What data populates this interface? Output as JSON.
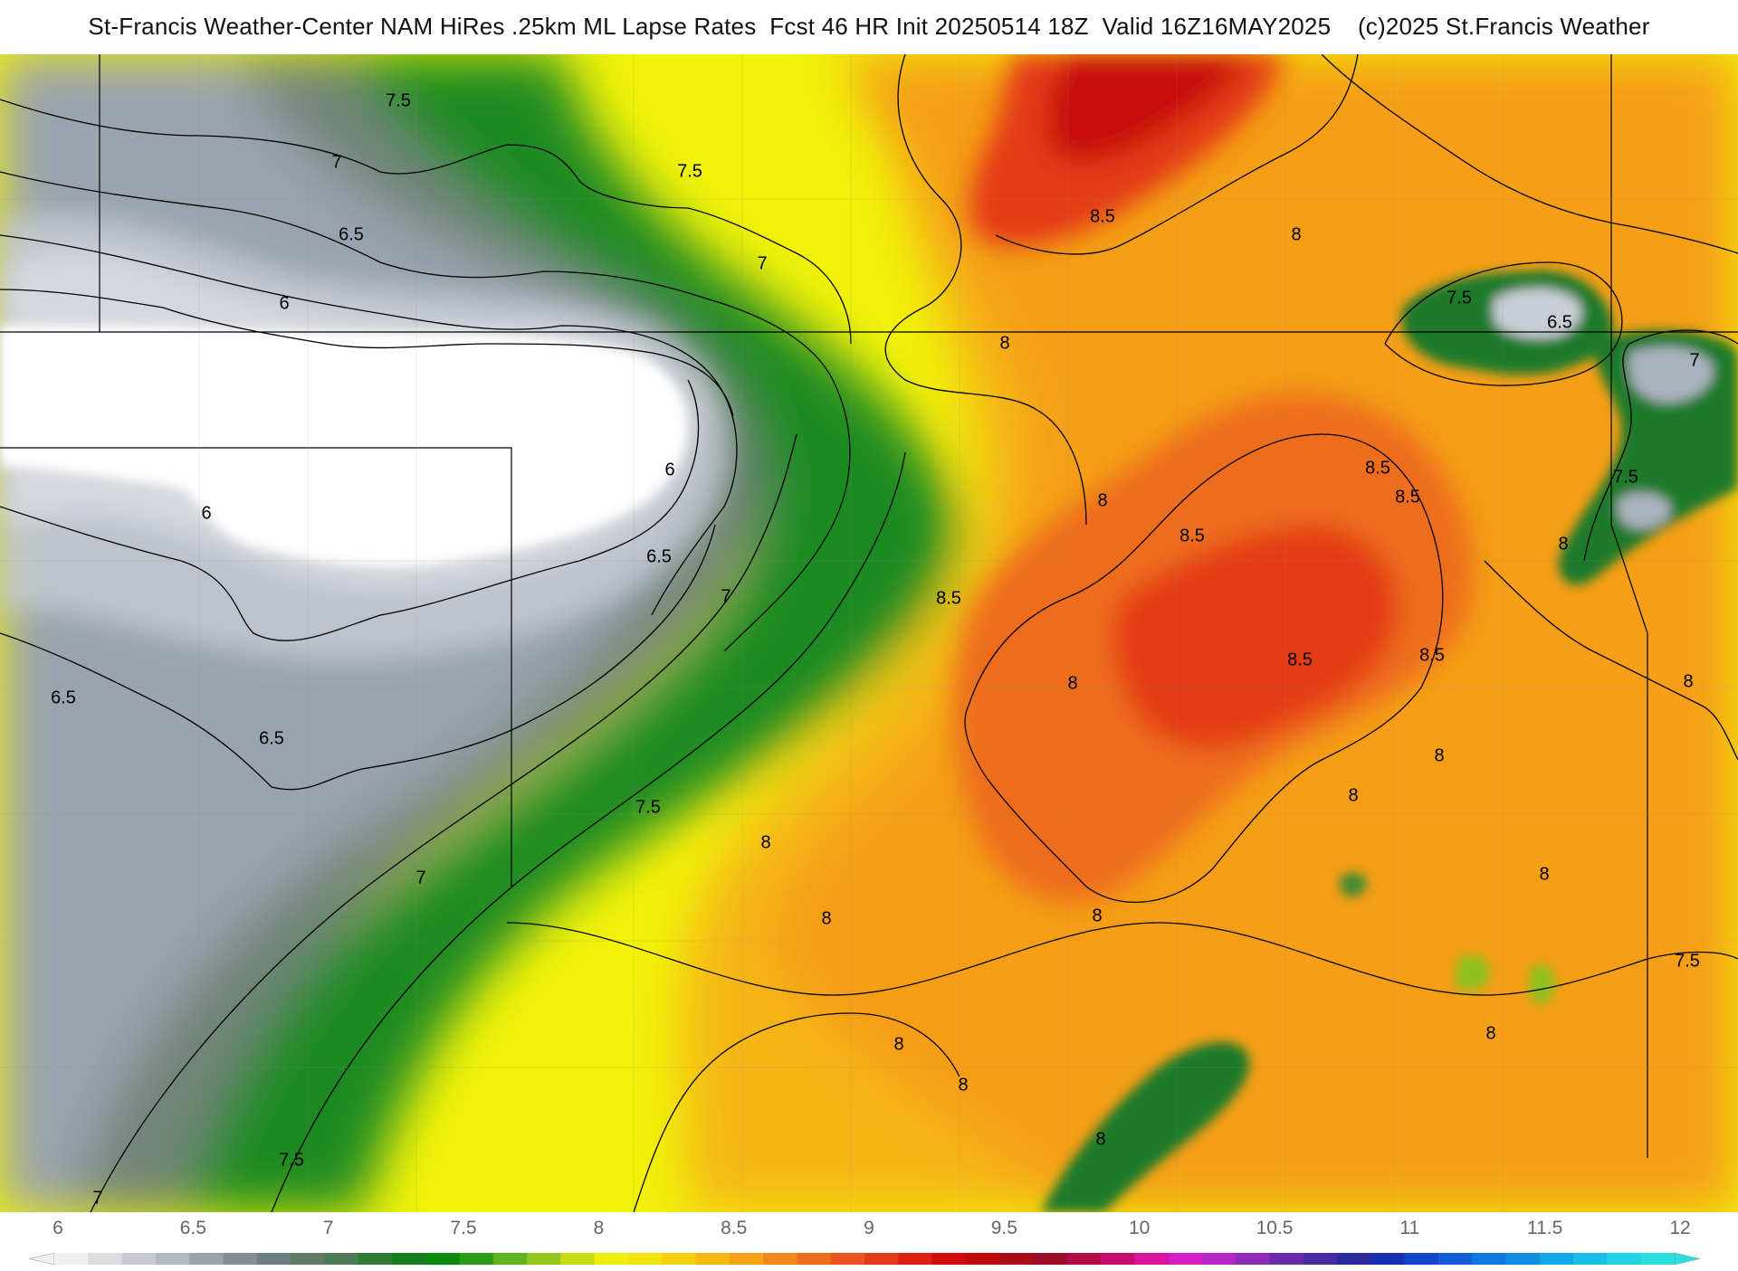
{
  "title": "St-Francis Weather-Center NAM HiRes .25km ML Lapse Rates  Fcst 46 HR Init 20250514 18Z  Valid 16Z16MAY2025    (c)2025 St.Francis Weather",
  "map": {
    "contour_labels": [
      "7.5",
      "7",
      "6.5",
      "6",
      "7.5",
      "7",
      "6",
      "6.5",
      "6",
      "6.5",
      "6.5",
      "7",
      "7.5",
      "7",
      "7.5",
      "7",
      "8",
      "8.5",
      "8",
      "8",
      "8",
      "8.5",
      "8.5",
      "8.5",
      "8.5",
      "8.5",
      "8.5",
      "8",
      "8",
      "8",
      "8",
      "8",
      "8",
      "8",
      "8",
      "8",
      "8",
      "8",
      "7.5",
      "7.5",
      "6.5",
      "7",
      "7.5",
      "8"
    ],
    "palette": [
      "#e6e8ec",
      "#c9ced6",
      "#aab2be",
      "#8e98a6",
      "#6f7d80",
      "#4f7a5c",
      "#1f7a2a",
      "#0c8a12",
      "#4aa51c",
      "#8cc11e",
      "#c8df12",
      "#f2f20a",
      "#f5dc0c",
      "#f7c010",
      "#f59e16",
      "#f07a1a",
      "#e85019",
      "#e02a14",
      "#c80a0a"
    ]
  },
  "legend": {
    "tick_labels": [
      "6",
      "6.5",
      "7",
      "7.5",
      "8",
      "8.5",
      "9",
      "9.5",
      "10",
      "10.5",
      "11",
      "11.5",
      "12"
    ],
    "colors": [
      "#f0f0f0",
      "#dadde1",
      "#c6cbd1",
      "#b1b8c0",
      "#9aa2ac",
      "#838d98",
      "#6e7d80",
      "#5f7a66",
      "#4c7a55",
      "#2f7a35",
      "#157f1f",
      "#0a8a10",
      "#2b9c16",
      "#5db41c",
      "#92c81c",
      "#c7dc14",
      "#eeee0c",
      "#f4e30a",
      "#f6cf0e",
      "#f6b912",
      "#f5a216",
      "#f3881a",
      "#ee6d1c",
      "#e9541c",
      "#e43a18",
      "#dc2212",
      "#d00d0c",
      "#bf0a0d",
      "#a80c16",
      "#9a0c2a",
      "#b00c4a",
      "#c80c6e",
      "#da12a0",
      "#d61ec6",
      "#b426c6",
      "#8e2cb8",
      "#6a2aac",
      "#4a2aa2",
      "#2c2a9c",
      "#1a30b4",
      "#1446cc",
      "#125ed8",
      "#1076e0",
      "#108ee4",
      "#12a6e6",
      "#18bee8",
      "#22d2e6",
      "#2ae0de"
    ]
  }
}
